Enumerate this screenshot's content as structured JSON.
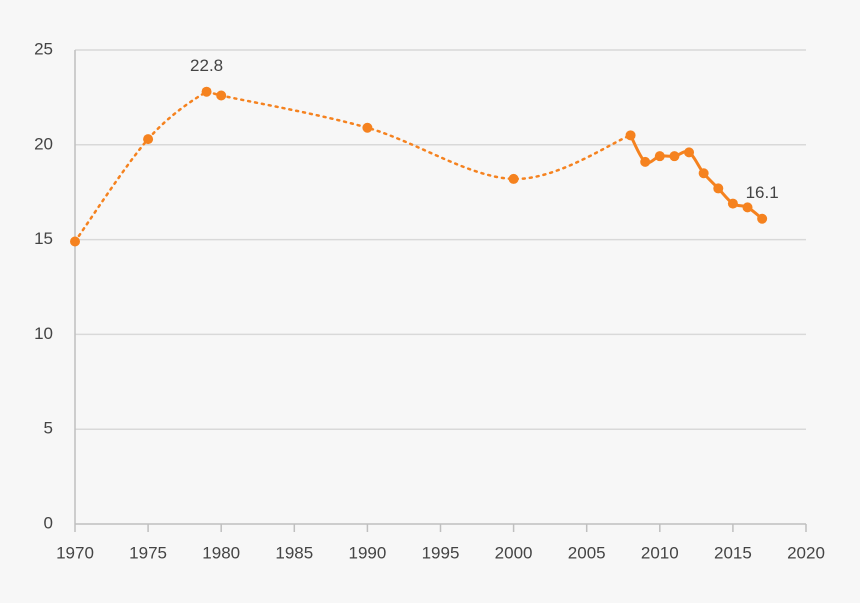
{
  "chart_data": {
    "type": "line",
    "x": [
      1970,
      1975,
      1979,
      1980,
      1990,
      2000,
      2008,
      2009,
      2010,
      2011,
      2012,
      2013,
      2014,
      2015,
      2016,
      2017
    ],
    "values": [
      14.9,
      20.3,
      22.8,
      22.6,
      20.9,
      18.2,
      20.5,
      19.1,
      19.4,
      19.4,
      19.6,
      18.5,
      17.7,
      16.9,
      16.7,
      16.1
    ],
    "value_labels": [
      null,
      null,
      "22.8",
      null,
      null,
      null,
      null,
      null,
      null,
      null,
      null,
      null,
      null,
      null,
      null,
      "16.1"
    ],
    "color": "#f5821f",
    "solid_from": 2008,
    "xlim": [
      1970,
      2020
    ],
    "xticks": [
      1970,
      1975,
      1980,
      1985,
      1990,
      1995,
      2000,
      2005,
      2010,
      2015,
      2020
    ],
    "ylim": [
      0,
      25
    ],
    "yticks": [
      0,
      5,
      10,
      15,
      20,
      25
    ],
    "grid": true
  }
}
